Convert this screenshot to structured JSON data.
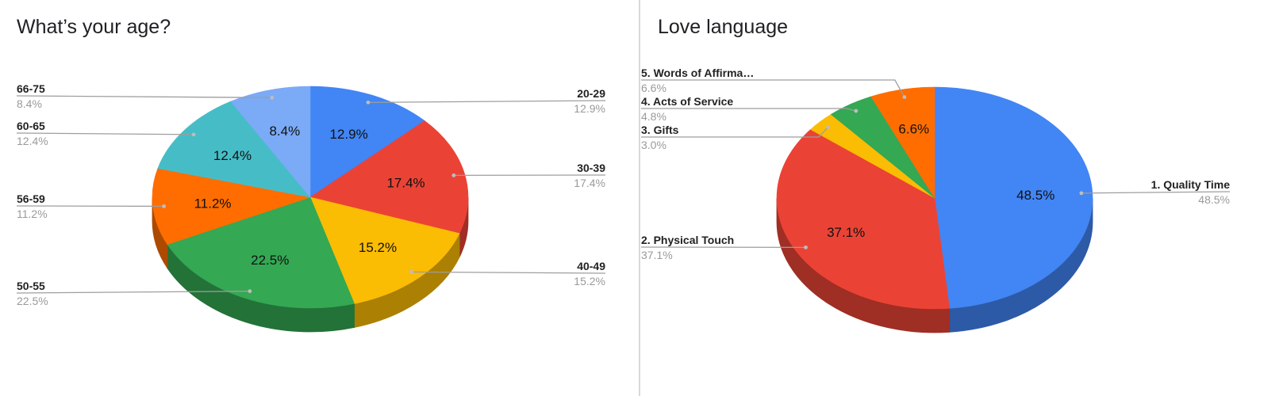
{
  "chart_data": [
    {
      "type": "pie",
      "title": "What’s your age?",
      "categories": [
        "20-29",
        "30-39",
        "40-49",
        "50-55",
        "56-59",
        "60-65",
        "66-75"
      ],
      "values": [
        12.9,
        17.4,
        15.2,
        22.5,
        11.2,
        12.4,
        8.4
      ],
      "labels": [
        "12.9%",
        "17.4%",
        "15.2%",
        "22.5%",
        "11.2%",
        "12.4%",
        "8.4%"
      ],
      "colors": [
        "#4285f4",
        "#ea4335",
        "#fbbc04",
        "#34a853",
        "#ff6d01",
        "#46bdc6",
        "#7baaf7"
      ],
      "style": "3d",
      "legend": "labeled leaders"
    },
    {
      "type": "pie",
      "title": "Love language",
      "categories": [
        "1. Quality Time",
        "2. Physical Touch",
        "3. Gifts",
        "4. Acts of Service",
        "5. Words of Affirma…"
      ],
      "values": [
        48.5,
        37.1,
        3.0,
        4.8,
        6.6
      ],
      "labels": [
        "48.5%",
        "37.1%",
        "3.0%",
        "4.8%",
        "6.6%"
      ],
      "colors": [
        "#4285f4",
        "#ea4335",
        "#fbbc04",
        "#34a853",
        "#ff6d01"
      ],
      "style": "3d",
      "legend": "labeled leaders"
    }
  ]
}
